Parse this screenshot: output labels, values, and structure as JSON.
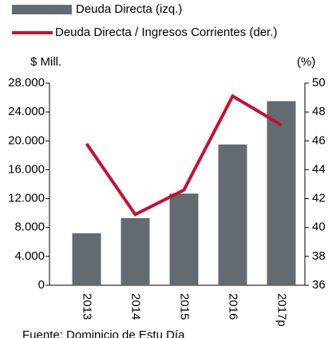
{
  "chart_data": {
    "type": "bar_line",
    "categories": [
      "2013",
      "2014",
      "2015",
      "2016",
      "2017p"
    ],
    "series": [
      {
        "name": "Deuda Directa (izq.)",
        "type": "bar",
        "color": "#646b70",
        "values": [
          7200,
          9300,
          12700,
          19500,
          25500
        ]
      },
      {
        "name": "Deuda Directa / Ingresos Corrientes (der.)",
        "type": "line",
        "axis": "y2",
        "color": "#c8102e",
        "values": [
          45.8,
          40.9,
          42.6,
          49.1,
          47.1
        ]
      }
    ],
    "ylabel": "$ Mill.",
    "y2label": "(%)",
    "ylim": [
      0,
      28000
    ],
    "yticks": [
      0,
      {
        "value": 4000,
        "label": "4.000"
      },
      {
        "value": 8000,
        "label": "8.000"
      },
      {
        "value": 12000,
        "label": "12.000"
      },
      {
        "value": 16000,
        "label": "16.000"
      },
      {
        "value": 20000,
        "label": "20.000"
      },
      {
        "value": 24000,
        "label": "24.000"
      },
      {
        "value": 28000,
        "label": "28.000"
      }
    ],
    "y2lim": [
      36,
      50
    ],
    "y2ticks": [
      36,
      38,
      40,
      42,
      44,
      46,
      48,
      50
    ],
    "source": "Fuente: Dominicio de Estu Día",
    "legend": "top-left"
  }
}
